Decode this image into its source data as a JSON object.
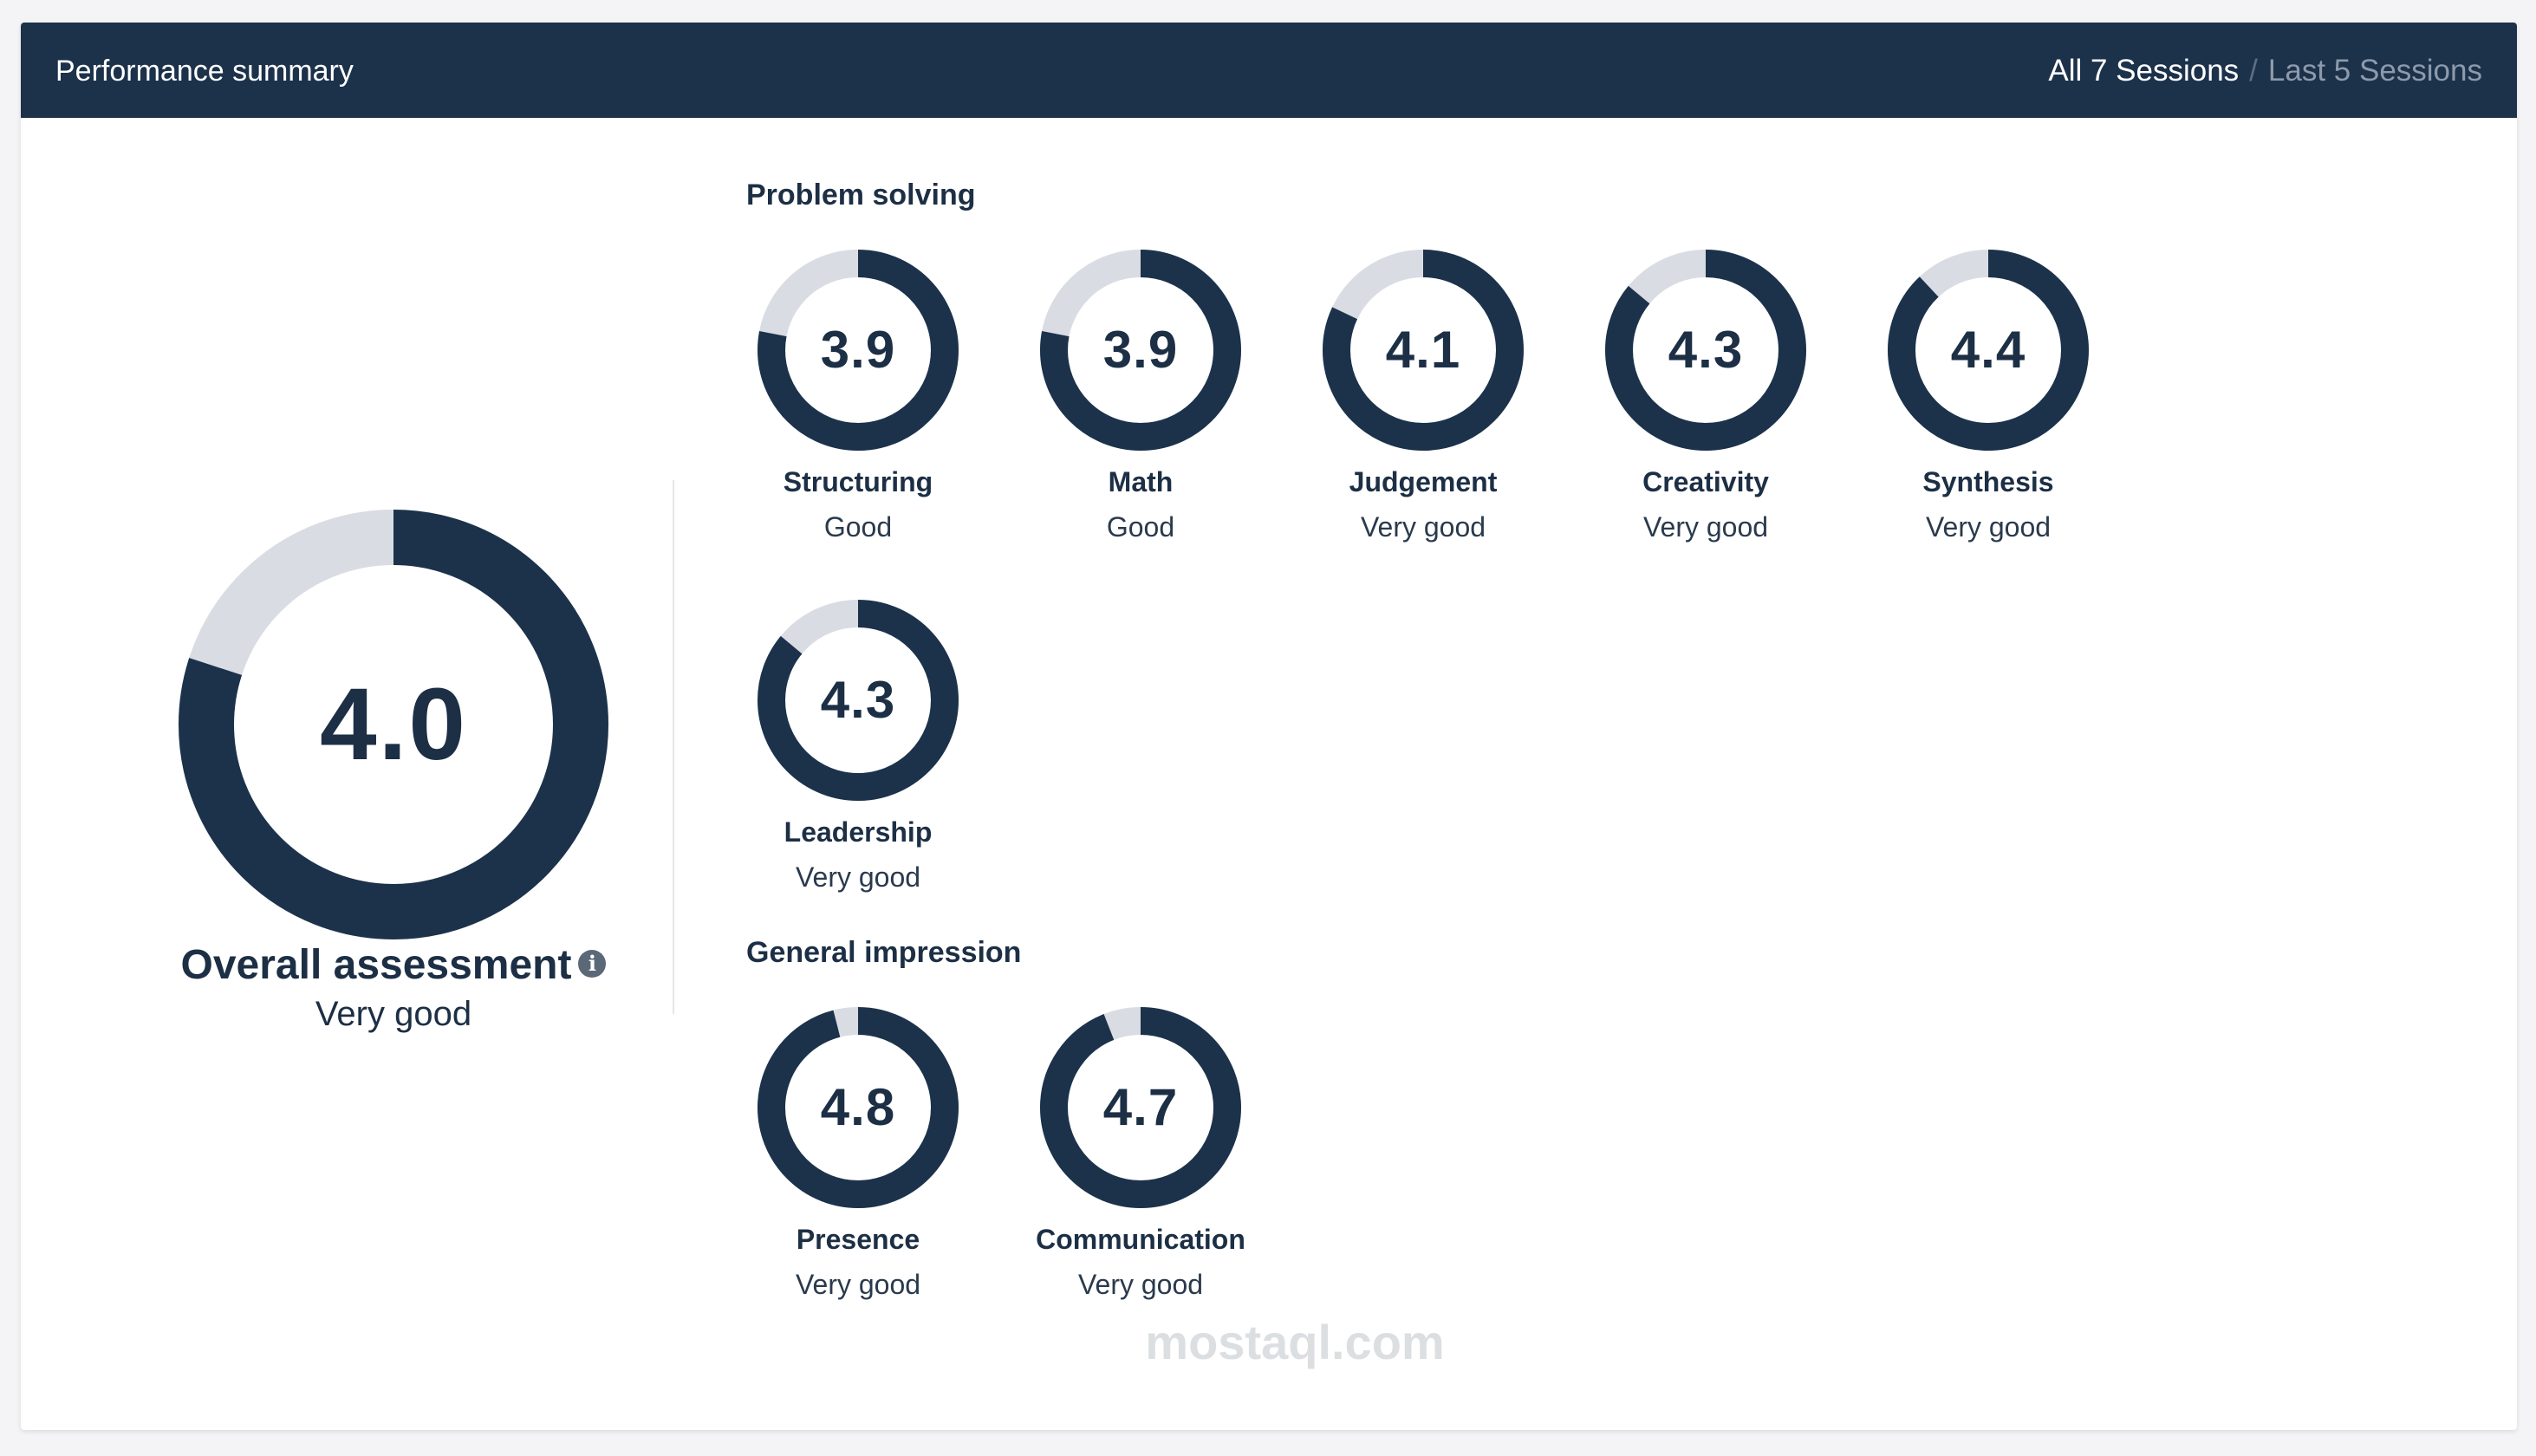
{
  "header": {
    "title": "Performance summary",
    "tab_all": "All 7 Sessions",
    "tab_separator": "/",
    "tab_last": "Last 5 Sessions"
  },
  "overall": {
    "score": "4.0",
    "score_value": 4.0,
    "max": 5,
    "label": "Overall assessment",
    "rating": "Very good"
  },
  "sections": {
    "problem_solving": {
      "title": "Problem solving",
      "metrics": [
        {
          "name": "Structuring",
          "score": "3.9",
          "value": 3.9,
          "rating": "Good"
        },
        {
          "name": "Math",
          "score": "3.9",
          "value": 3.9,
          "rating": "Good"
        },
        {
          "name": "Judgement",
          "score": "4.1",
          "value": 4.1,
          "rating": "Very good"
        },
        {
          "name": "Creativity",
          "score": "4.3",
          "value": 4.3,
          "rating": "Very good"
        },
        {
          "name": "Synthesis",
          "score": "4.4",
          "value": 4.4,
          "rating": "Very good"
        },
        {
          "name": "Leadership",
          "score": "4.3",
          "value": 4.3,
          "rating": "Very good"
        }
      ]
    },
    "general_impression": {
      "title": "General impression",
      "metrics": [
        {
          "name": "Presence",
          "score": "4.8",
          "value": 4.8,
          "rating": "Very good"
        },
        {
          "name": "Communication",
          "score": "4.7",
          "value": 4.7,
          "rating": "Very good"
        }
      ]
    }
  },
  "colors": {
    "header_bg": "#1c324b",
    "ring_fill": "#1c324b",
    "ring_track": "#d9dde3"
  },
  "watermark": "mostaql.com"
}
